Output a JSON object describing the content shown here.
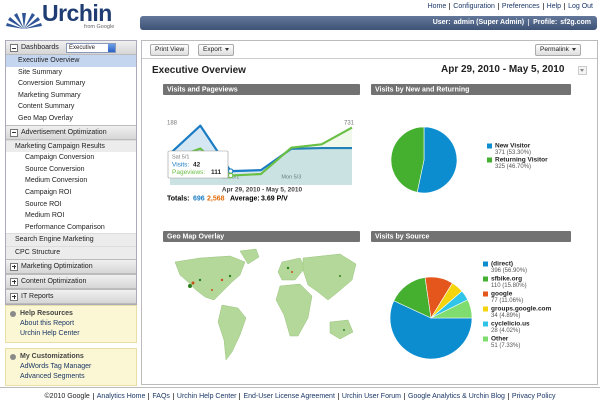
{
  "header": {
    "logo": "Urchin",
    "logo_sub": "from Google",
    "links": [
      "Home",
      "Configuration",
      "Preferences",
      "Help",
      "Log Out"
    ],
    "user_label": "User:",
    "user": "admin (Super Admin)",
    "profile_label": "Profile:",
    "profile": "sf2g.com"
  },
  "sidebar": {
    "sections": [
      {
        "title": "Dashboards",
        "select": "Executive",
        "open": true,
        "items": [
          {
            "label": "Executive Overview",
            "selected": true
          },
          {
            "label": "Site Summary"
          },
          {
            "label": "Conversion Summary"
          },
          {
            "label": "Marketing Summary"
          },
          {
            "label": "Content Summary"
          },
          {
            "label": "Geo Map Overlay"
          }
        ]
      },
      {
        "title": "Advertisement Optimization",
        "open": true,
        "items": [
          {
            "label": "Marketing Campaign Results",
            "items": [
              "Campaign Conversion",
              "Source Conversion",
              "Medium Conversion",
              "Campaign ROI",
              "Source ROI",
              "Medium ROI",
              "Performance Comparison"
            ]
          },
          {
            "label": "Search Engine Marketing"
          },
          {
            "label": "CPC Structure"
          }
        ]
      },
      {
        "title": "Marketing Optimization",
        "open": false
      },
      {
        "title": "Content Optimization",
        "open": false
      },
      {
        "title": "IT Reports",
        "open": false
      }
    ],
    "boxes": [
      {
        "title": "Help Resources",
        "links": [
          "About this Report",
          "Urchin Help Center"
        ]
      },
      {
        "title": "My Customizations",
        "links": [
          "AdWords Tag Manager",
          "Advanced Segments"
        ]
      }
    ]
  },
  "toolbar": {
    "print": "Print View",
    "export": "Export",
    "permalink": "Permalink"
  },
  "title": "Executive Overview",
  "date_range": "Apr 29, 2010 - May 5, 2010",
  "panels": {
    "visits": {
      "type": "line",
      "title": "Visits and Pageviews",
      "categories": [
        null,
        null,
        "Sat 5/1",
        null,
        "Mon 5/3",
        null,
        null
      ],
      "series": [
        {
          "name": "Visits:",
          "color": "#1a7cc4",
          "values": [
            95,
            180,
            42,
            45,
            110,
            112,
            112
          ]
        },
        {
          "name": "Pageviews:",
          "color": "#6abf45",
          "axis": "y2",
          "values": [
            300,
            430,
            111,
            130,
            440,
            480,
            677
          ]
        }
      ],
      "ylim": [
        0,
        188
      ],
      "yticks": [
        188
      ],
      "y2lim": [
        0,
        731
      ],
      "y2ticks": [
        731
      ],
      "totals": {
        "label": "Totals:",
        "visits": 696,
        "pageviews": {
          "value": 2568,
          "label": "2,568"
        },
        "average_label": "Average:",
        "average": "3.69 P/V"
      }
    },
    "new_returning": {
      "type": "pie",
      "title": "Visits by New and Returning",
      "categories": [
        "New Visitor",
        "Returning Visitor"
      ],
      "values": [
        371,
        325
      ],
      "value_labels": [
        "371 (53.30%)",
        "325 (46.70%)"
      ],
      "colors": [
        "#0b8dd0",
        "#45b02f"
      ]
    },
    "geo": {
      "title": "Geo Map Overlay"
    },
    "source": {
      "type": "pie",
      "title": "Visits by Source",
      "categories": [
        "(direct)",
        "sfbike.org",
        "google",
        "groups.google.com",
        "cyclelicio.us",
        "Other"
      ],
      "values": [
        396,
        110,
        77,
        34,
        28,
        51
      ],
      "value_labels": [
        "396 (56.90%)",
        "110 (15.80%)",
        "77 (11.06%)",
        "34 (4.89%)",
        "28 (4.02%)",
        "51 (7.33%)"
      ],
      "colors": [
        "#0b8dd0",
        "#45b02f",
        "#e4561c",
        "#f4d40c",
        "#2fc4e8",
        "#7fdc6e"
      ]
    }
  },
  "footer": [
    "©2010 Google",
    "Analytics Home",
    "FAQs",
    "Urchin Help Center",
    "End-User License Agreement",
    "Urchin User Forum",
    "Google Analytics & Urchin Blog",
    "Privacy Policy"
  ]
}
